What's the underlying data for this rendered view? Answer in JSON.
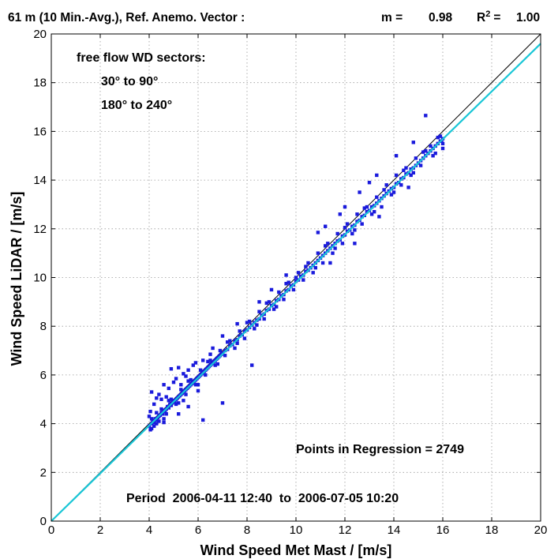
{
  "title": {
    "left": "61 m (10 Min.-Avg.), Ref. Anemo. Vector :",
    "m_label": "m =",
    "m_value": "0.98",
    "r2_label": "R",
    "r2_sup": "2",
    "r2_eq": "=",
    "r2_value": "1.00"
  },
  "annotations": {
    "sectors_heading": "free flow WD sectors:",
    "sector_1": "30° to 90°",
    "sector_2": "180° to 240°",
    "points": "Points in Regression = 2749",
    "period": "Period  2006-04-11 12:40  to  2006-07-05 10:20"
  },
  "chart_data": {
    "type": "scatter",
    "xlabel": "Wind Speed Met Mast / [m/s]",
    "ylabel": "Wind Speed LiDAR / [m/s]",
    "xlim": [
      0,
      20
    ],
    "ylim": [
      0,
      20
    ],
    "xticks": [
      0,
      2,
      4,
      6,
      8,
      10,
      12,
      14,
      16,
      18,
      20
    ],
    "yticks": [
      0,
      2,
      4,
      6,
      8,
      10,
      12,
      14,
      16,
      18,
      20
    ],
    "grid": true,
    "colors": {
      "points": "#1a1adc",
      "regression": "#19c6d6",
      "reference": "#000000"
    },
    "reference_line": {
      "x": [
        0,
        20
      ],
      "y": [
        0,
        20
      ]
    },
    "regression": {
      "slope": 0.98,
      "intercept": 0,
      "r2": 1.0,
      "x": [
        0,
        20
      ],
      "y": [
        0,
        19.6
      ]
    },
    "series": [
      {
        "points": [
          [
            4.0,
            3.9
          ],
          [
            4.05,
            3.75
          ],
          [
            4.1,
            4.0
          ],
          [
            4.15,
            4.1
          ],
          [
            4.2,
            4.05
          ],
          [
            4.25,
            4.2
          ],
          [
            4.3,
            4.15
          ],
          [
            4.35,
            4.25
          ],
          [
            4.4,
            4.3
          ],
          [
            4.45,
            4.35
          ],
          [
            4.5,
            4.45
          ],
          [
            4.55,
            4.4
          ],
          [
            4.6,
            4.55
          ],
          [
            4.65,
            4.5
          ],
          [
            4.7,
            4.6
          ],
          [
            4.75,
            4.7
          ],
          [
            4.8,
            4.65
          ],
          [
            4.85,
            4.8
          ],
          [
            4.9,
            4.75
          ],
          [
            4.95,
            4.85
          ],
          [
            5.0,
            4.95
          ],
          [
            5.05,
            4.9
          ],
          [
            5.1,
            5.0
          ],
          [
            5.15,
            5.05
          ],
          [
            5.2,
            5.1
          ],
          [
            5.25,
            5.15
          ],
          [
            5.3,
            5.2
          ],
          [
            5.35,
            5.25
          ],
          [
            5.4,
            5.3
          ],
          [
            5.45,
            5.35
          ],
          [
            5.5,
            5.4
          ],
          [
            5.55,
            5.45
          ],
          [
            5.6,
            5.5
          ],
          [
            5.65,
            5.55
          ],
          [
            5.7,
            5.6
          ],
          [
            5.75,
            5.65
          ],
          [
            5.8,
            5.7
          ],
          [
            5.85,
            5.75
          ],
          [
            5.9,
            5.8
          ],
          [
            5.95,
            5.85
          ],
          [
            6.0,
            5.9
          ],
          [
            6.05,
            5.95
          ],
          [
            6.1,
            6.0
          ],
          [
            6.15,
            6.05
          ],
          [
            6.2,
            6.1
          ],
          [
            6.25,
            6.15
          ],
          [
            6.3,
            6.2
          ],
          [
            6.35,
            6.25
          ],
          [
            6.4,
            6.3
          ],
          [
            6.45,
            6.35
          ],
          [
            6.5,
            6.4
          ],
          [
            6.55,
            6.45
          ],
          [
            6.6,
            6.5
          ],
          [
            6.65,
            6.55
          ],
          [
            6.7,
            6.6
          ],
          [
            6.75,
            6.65
          ],
          [
            6.8,
            6.7
          ],
          [
            6.85,
            6.75
          ],
          [
            6.9,
            6.8
          ],
          [
            6.95,
            6.85
          ],
          [
            7.0,
            6.9
          ],
          [
            7.1,
            7.0
          ],
          [
            7.2,
            7.05
          ],
          [
            7.3,
            7.2
          ],
          [
            7.4,
            7.25
          ],
          [
            7.5,
            7.4
          ],
          [
            7.6,
            7.45
          ],
          [
            7.7,
            7.6
          ],
          [
            7.8,
            7.65
          ],
          [
            7.9,
            7.8
          ],
          [
            8.0,
            7.85
          ],
          [
            8.1,
            7.95
          ],
          [
            8.2,
            8.05
          ],
          [
            8.3,
            8.15
          ],
          [
            8.4,
            8.25
          ],
          [
            8.5,
            8.3
          ],
          [
            8.6,
            8.45
          ],
          [
            8.7,
            8.5
          ],
          [
            8.8,
            8.65
          ],
          [
            8.9,
            8.7
          ],
          [
            9.0,
            8.85
          ],
          [
            9.1,
            8.9
          ],
          [
            9.2,
            9.05
          ],
          [
            9.3,
            9.1
          ],
          [
            9.4,
            9.25
          ],
          [
            9.5,
            9.3
          ],
          [
            9.6,
            9.45
          ],
          [
            9.7,
            9.5
          ],
          [
            9.8,
            9.65
          ],
          [
            9.9,
            9.7
          ],
          [
            10.0,
            9.85
          ],
          [
            10.1,
            9.9
          ],
          [
            10.2,
            10.05
          ],
          [
            10.3,
            10.1
          ],
          [
            10.4,
            10.25
          ],
          [
            10.5,
            10.3
          ],
          [
            10.6,
            10.4
          ],
          [
            10.7,
            10.5
          ],
          [
            10.8,
            10.6
          ],
          [
            10.9,
            10.7
          ],
          [
            11.0,
            10.8
          ],
          [
            11.1,
            10.9
          ],
          [
            11.2,
            11.0
          ],
          [
            11.3,
            11.1
          ],
          [
            11.4,
            11.2
          ],
          [
            11.5,
            11.3
          ],
          [
            11.6,
            11.4
          ],
          [
            11.7,
            11.5
          ],
          [
            11.8,
            11.55
          ],
          [
            11.9,
            11.7
          ],
          [
            12.0,
            11.75
          ],
          [
            12.1,
            11.9
          ],
          [
            12.2,
            11.95
          ],
          [
            12.3,
            12.1
          ],
          [
            12.4,
            12.15
          ],
          [
            12.5,
            12.3
          ],
          [
            12.6,
            12.35
          ],
          [
            12.7,
            12.5
          ],
          [
            12.8,
            12.55
          ],
          [
            12.9,
            12.7
          ],
          [
            13.0,
            12.75
          ],
          [
            13.1,
            12.9
          ],
          [
            13.2,
            12.95
          ],
          [
            13.3,
            13.05
          ],
          [
            13.4,
            13.15
          ],
          [
            13.5,
            13.25
          ],
          [
            13.6,
            13.35
          ],
          [
            13.7,
            13.45
          ],
          [
            13.8,
            13.55
          ],
          [
            13.9,
            13.65
          ],
          [
            14.0,
            13.7
          ],
          [
            14.1,
            13.85
          ],
          [
            14.2,
            13.9
          ],
          [
            14.3,
            14.05
          ],
          [
            14.4,
            14.1
          ],
          [
            14.5,
            14.25
          ],
          [
            14.6,
            14.3
          ],
          [
            14.7,
            14.45
          ],
          [
            14.8,
            14.5
          ],
          [
            14.9,
            14.6
          ],
          [
            15.0,
            14.7
          ],
          [
            15.1,
            14.8
          ],
          [
            15.2,
            14.9
          ],
          [
            15.3,
            15.0
          ],
          [
            15.4,
            15.1
          ],
          [
            15.5,
            15.2
          ],
          [
            15.6,
            15.3
          ],
          [
            15.7,
            15.4
          ],
          [
            15.8,
            15.5
          ],
          [
            15.9,
            15.6
          ],
          [
            16.0,
            15.7
          ],
          [
            16.0,
            15.3
          ],
          [
            15.9,
            15.8
          ],
          [
            15.7,
            15.1
          ],
          [
            15.5,
            15.4
          ],
          [
            15.3,
            15.2
          ],
          [
            15.1,
            14.6
          ],
          [
            14.9,
            14.9
          ],
          [
            14.7,
            14.2
          ],
          [
            14.5,
            14.5
          ],
          [
            14.3,
            13.8
          ],
          [
            14.1,
            14.2
          ],
          [
            13.9,
            13.4
          ],
          [
            13.7,
            13.8
          ],
          [
            13.5,
            12.9
          ],
          [
            13.3,
            13.3
          ],
          [
            13.1,
            12.6
          ],
          [
            12.9,
            12.9
          ],
          [
            12.7,
            12.2
          ],
          [
            12.5,
            12.6
          ],
          [
            12.3,
            11.8
          ],
          [
            12.1,
            12.2
          ],
          [
            11.9,
            11.4
          ],
          [
            11.7,
            11.8
          ],
          [
            11.5,
            11.0
          ],
          [
            11.3,
            11.4
          ],
          [
            11.1,
            10.6
          ],
          [
            10.9,
            11.0
          ],
          [
            10.7,
            10.2
          ],
          [
            10.5,
            10.6
          ],
          [
            10.3,
            9.9
          ],
          [
            10.1,
            10.2
          ],
          [
            9.9,
            9.5
          ],
          [
            9.7,
            9.8
          ],
          [
            9.5,
            9.1
          ],
          [
            9.3,
            9.4
          ],
          [
            9.1,
            8.7
          ],
          [
            8.9,
            9.0
          ],
          [
            8.7,
            8.3
          ],
          [
            8.5,
            8.6
          ],
          [
            8.3,
            7.9
          ],
          [
            8.1,
            8.2
          ],
          [
            7.9,
            7.5
          ],
          [
            7.7,
            7.8
          ],
          [
            7.5,
            7.1
          ],
          [
            7.3,
            7.4
          ],
          [
            7.1,
            6.8
          ],
          [
            6.9,
            7.0
          ],
          [
            6.7,
            6.4
          ],
          [
            6.5,
            6.6
          ],
          [
            6.3,
            6.0
          ],
          [
            6.1,
            6.2
          ],
          [
            5.9,
            5.6
          ],
          [
            5.7,
            5.8
          ],
          [
            5.5,
            5.2
          ],
          [
            5.3,
            5.4
          ],
          [
            5.1,
            4.8
          ],
          [
            4.9,
            5.0
          ],
          [
            4.7,
            4.4
          ],
          [
            4.5,
            4.6
          ],
          [
            4.3,
            4.0
          ],
          [
            4.1,
            4.2
          ],
          [
            4.0,
            4.3
          ],
          [
            4.05,
            4.5
          ],
          [
            4.1,
            3.8
          ],
          [
            4.2,
            3.9
          ],
          [
            4.3,
            4.45
          ],
          [
            4.4,
            4.1
          ],
          [
            4.6,
            4.2
          ],
          [
            4.8,
            4.95
          ],
          [
            5.2,
            4.85
          ],
          [
            5.6,
            5.75
          ],
          [
            6.0,
            5.6
          ],
          [
            6.4,
            6.55
          ],
          [
            6.8,
            6.45
          ],
          [
            7.2,
            7.35
          ],
          [
            7.6,
            7.3
          ],
          [
            8.0,
            8.15
          ],
          [
            8.4,
            8.05
          ],
          [
            8.8,
            8.95
          ],
          [
            9.2,
            8.8
          ],
          [
            9.6,
            9.75
          ],
          [
            10.0,
            10.0
          ],
          [
            10.4,
            10.45
          ],
          [
            10.8,
            10.4
          ],
          [
            11.2,
            11.3
          ],
          [
            11.6,
            11.2
          ],
          [
            12.0,
            12.05
          ],
          [
            12.4,
            11.95
          ],
          [
            12.8,
            12.85
          ],
          [
            13.2,
            12.7
          ],
          [
            13.6,
            13.6
          ],
          [
            14.0,
            13.5
          ],
          [
            14.4,
            14.4
          ],
          [
            14.8,
            14.3
          ],
          [
            15.2,
            15.15
          ],
          [
            15.6,
            15.0
          ],
          [
            15.8,
            15.75
          ],
          [
            16.0,
            15.5
          ],
          [
            15.95,
            15.6
          ],
          [
            4.1,
            5.3
          ],
          [
            4.3,
            5.05
          ],
          [
            4.6,
            5.6
          ],
          [
            4.9,
            6.25
          ],
          [
            5.0,
            5.7
          ],
          [
            5.2,
            6.3
          ],
          [
            5.3,
            5.6
          ],
          [
            5.5,
            5.95
          ],
          [
            5.8,
            6.4
          ],
          [
            6.2,
            6.6
          ],
          [
            4.5,
            5.0
          ],
          [
            4.8,
            5.45
          ],
          [
            5.1,
            5.85
          ],
          [
            5.4,
            6.05
          ],
          [
            4.2,
            4.8
          ],
          [
            4.4,
            5.2
          ],
          [
            4.7,
            5.1
          ],
          [
            5.6,
            6.2
          ],
          [
            5.9,
            6.5
          ],
          [
            6.5,
            6.85
          ],
          [
            7.0,
            4.85
          ],
          [
            6.2,
            4.15
          ],
          [
            5.6,
            4.7
          ],
          [
            8.2,
            6.4
          ],
          [
            5.2,
            4.4
          ],
          [
            4.6,
            4.05
          ],
          [
            5.4,
            4.95
          ],
          [
            6.0,
            5.35
          ],
          [
            10.9,
            11.85
          ],
          [
            11.8,
            12.6
          ],
          [
            12.6,
            13.5
          ],
          [
            13.3,
            14.2
          ],
          [
            15.3,
            16.65
          ],
          [
            14.1,
            15.0
          ],
          [
            14.8,
            15.55
          ],
          [
            11.2,
            12.1
          ],
          [
            12.0,
            12.9
          ],
          [
            13.0,
            13.9
          ],
          [
            9.6,
            10.1
          ],
          [
            9.0,
            9.5
          ],
          [
            8.5,
            9.0
          ],
          [
            7.6,
            8.1
          ],
          [
            7.0,
            7.6
          ],
          [
            6.6,
            7.1
          ],
          [
            12.4,
            11.4
          ],
          [
            13.4,
            12.5
          ],
          [
            14.6,
            13.7
          ],
          [
            11.4,
            10.6
          ]
        ]
      }
    ]
  }
}
